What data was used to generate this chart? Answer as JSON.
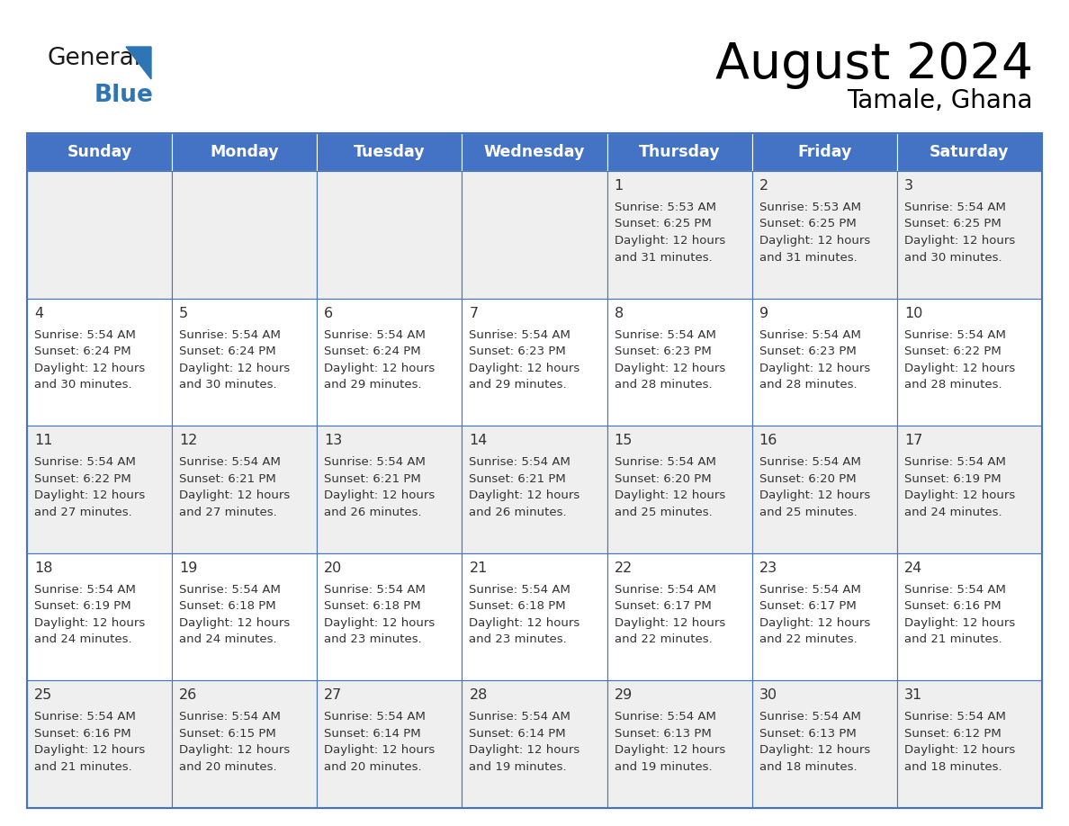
{
  "title": "August 2024",
  "subtitle": "Tamale, Ghana",
  "days_of_week": [
    "Sunday",
    "Monday",
    "Tuesday",
    "Wednesday",
    "Thursday",
    "Friday",
    "Saturday"
  ],
  "header_bg": "#4472C4",
  "header_text": "#FFFFFF",
  "row_bg_odd": "#EFEFEF",
  "row_bg_even": "#FFFFFF",
  "cell_text_color": "#333333",
  "day_number_color": "#333333",
  "border_color": "#4472C4",
  "logo_general_color": "#1a1a1a",
  "logo_blue_color": "#2E75B6",
  "logo_triangle_color": "#2E75B6",
  "calendar_data": [
    [
      null,
      null,
      null,
      null,
      {
        "day": 1,
        "sunrise": "5:53 AM",
        "sunset": "6:25 PM",
        "daylight_hours": "12 hours",
        "daylight_minutes": "and 31 minutes."
      },
      {
        "day": 2,
        "sunrise": "5:53 AM",
        "sunset": "6:25 PM",
        "daylight_hours": "12 hours",
        "daylight_minutes": "and 31 minutes."
      },
      {
        "day": 3,
        "sunrise": "5:54 AM",
        "sunset": "6:25 PM",
        "daylight_hours": "12 hours",
        "daylight_minutes": "and 30 minutes."
      }
    ],
    [
      {
        "day": 4,
        "sunrise": "5:54 AM",
        "sunset": "6:24 PM",
        "daylight_hours": "12 hours",
        "daylight_minutes": "and 30 minutes."
      },
      {
        "day": 5,
        "sunrise": "5:54 AM",
        "sunset": "6:24 PM",
        "daylight_hours": "12 hours",
        "daylight_minutes": "and 30 minutes."
      },
      {
        "day": 6,
        "sunrise": "5:54 AM",
        "sunset": "6:24 PM",
        "daylight_hours": "12 hours",
        "daylight_minutes": "and 29 minutes."
      },
      {
        "day": 7,
        "sunrise": "5:54 AM",
        "sunset": "6:23 PM",
        "daylight_hours": "12 hours",
        "daylight_minutes": "and 29 minutes."
      },
      {
        "day": 8,
        "sunrise": "5:54 AM",
        "sunset": "6:23 PM",
        "daylight_hours": "12 hours",
        "daylight_minutes": "and 28 minutes."
      },
      {
        "day": 9,
        "sunrise": "5:54 AM",
        "sunset": "6:23 PM",
        "daylight_hours": "12 hours",
        "daylight_minutes": "and 28 minutes."
      },
      {
        "day": 10,
        "sunrise": "5:54 AM",
        "sunset": "6:22 PM",
        "daylight_hours": "12 hours",
        "daylight_minutes": "and 28 minutes."
      }
    ],
    [
      {
        "day": 11,
        "sunrise": "5:54 AM",
        "sunset": "6:22 PM",
        "daylight_hours": "12 hours",
        "daylight_minutes": "and 27 minutes."
      },
      {
        "day": 12,
        "sunrise": "5:54 AM",
        "sunset": "6:21 PM",
        "daylight_hours": "12 hours",
        "daylight_minutes": "and 27 minutes."
      },
      {
        "day": 13,
        "sunrise": "5:54 AM",
        "sunset": "6:21 PM",
        "daylight_hours": "12 hours",
        "daylight_minutes": "and 26 minutes."
      },
      {
        "day": 14,
        "sunrise": "5:54 AM",
        "sunset": "6:21 PM",
        "daylight_hours": "12 hours",
        "daylight_minutes": "and 26 minutes."
      },
      {
        "day": 15,
        "sunrise": "5:54 AM",
        "sunset": "6:20 PM",
        "daylight_hours": "12 hours",
        "daylight_minutes": "and 25 minutes."
      },
      {
        "day": 16,
        "sunrise": "5:54 AM",
        "sunset": "6:20 PM",
        "daylight_hours": "12 hours",
        "daylight_minutes": "and 25 minutes."
      },
      {
        "day": 17,
        "sunrise": "5:54 AM",
        "sunset": "6:19 PM",
        "daylight_hours": "12 hours",
        "daylight_minutes": "and 24 minutes."
      }
    ],
    [
      {
        "day": 18,
        "sunrise": "5:54 AM",
        "sunset": "6:19 PM",
        "daylight_hours": "12 hours",
        "daylight_minutes": "and 24 minutes."
      },
      {
        "day": 19,
        "sunrise": "5:54 AM",
        "sunset": "6:18 PM",
        "daylight_hours": "12 hours",
        "daylight_minutes": "and 24 minutes."
      },
      {
        "day": 20,
        "sunrise": "5:54 AM",
        "sunset": "6:18 PM",
        "daylight_hours": "12 hours",
        "daylight_minutes": "and 23 minutes."
      },
      {
        "day": 21,
        "sunrise": "5:54 AM",
        "sunset": "6:18 PM",
        "daylight_hours": "12 hours",
        "daylight_minutes": "and 23 minutes."
      },
      {
        "day": 22,
        "sunrise": "5:54 AM",
        "sunset": "6:17 PM",
        "daylight_hours": "12 hours",
        "daylight_minutes": "and 22 minutes."
      },
      {
        "day": 23,
        "sunrise": "5:54 AM",
        "sunset": "6:17 PM",
        "daylight_hours": "12 hours",
        "daylight_minutes": "and 22 minutes."
      },
      {
        "day": 24,
        "sunrise": "5:54 AM",
        "sunset": "6:16 PM",
        "daylight_hours": "12 hours",
        "daylight_minutes": "and 21 minutes."
      }
    ],
    [
      {
        "day": 25,
        "sunrise": "5:54 AM",
        "sunset": "6:16 PM",
        "daylight_hours": "12 hours",
        "daylight_minutes": "and 21 minutes."
      },
      {
        "day": 26,
        "sunrise": "5:54 AM",
        "sunset": "6:15 PM",
        "daylight_hours": "12 hours",
        "daylight_minutes": "and 20 minutes."
      },
      {
        "day": 27,
        "sunrise": "5:54 AM",
        "sunset": "6:14 PM",
        "daylight_hours": "12 hours",
        "daylight_minutes": "and 20 minutes."
      },
      {
        "day": 28,
        "sunrise": "5:54 AM",
        "sunset": "6:14 PM",
        "daylight_hours": "12 hours",
        "daylight_minutes": "and 19 minutes."
      },
      {
        "day": 29,
        "sunrise": "5:54 AM",
        "sunset": "6:13 PM",
        "daylight_hours": "12 hours",
        "daylight_minutes": "and 19 minutes."
      },
      {
        "day": 30,
        "sunrise": "5:54 AM",
        "sunset": "6:13 PM",
        "daylight_hours": "12 hours",
        "daylight_minutes": "and 18 minutes."
      },
      {
        "day": 31,
        "sunrise": "5:54 AM",
        "sunset": "6:12 PM",
        "daylight_hours": "12 hours",
        "daylight_minutes": "and 18 minutes."
      }
    ]
  ]
}
